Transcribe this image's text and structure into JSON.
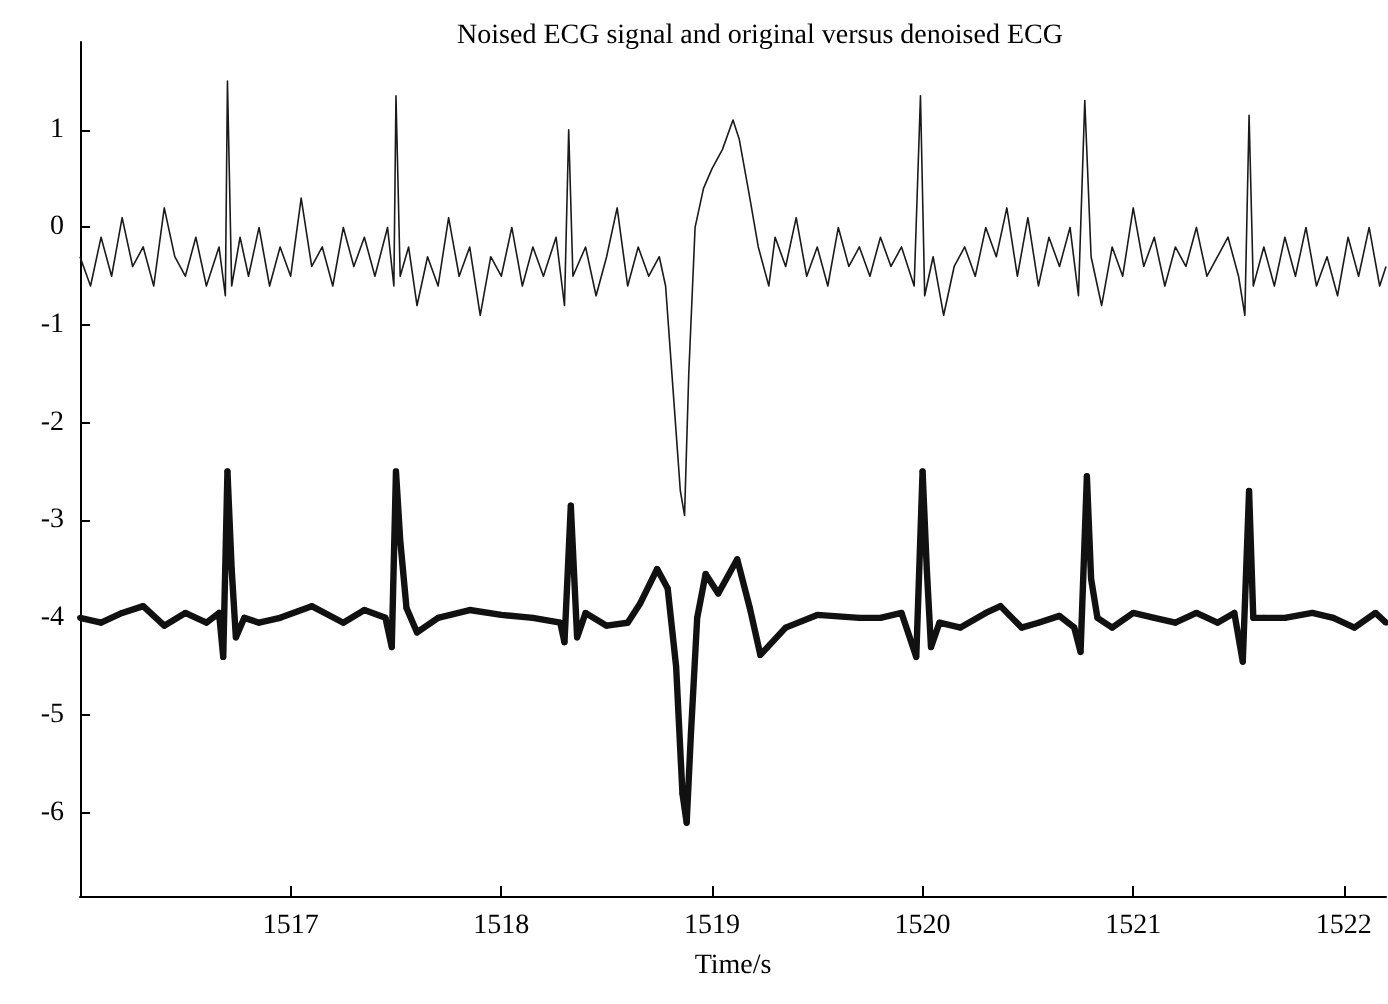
{
  "chart_data": {
    "type": "line",
    "title": "Noised ECG signal and original versus denoised ECG",
    "xlabel": "Time/s",
    "xlim": [
      1516.0,
      1522.2
    ],
    "xticks": [
      1517,
      1518,
      1519,
      1520,
      1521,
      1522
    ],
    "ylim": [
      -6.85,
      1.9
    ],
    "yticks": [
      -6,
      -5,
      -4,
      -3,
      -2,
      -1,
      0,
      1
    ],
    "grid": false,
    "series": [
      {
        "color": "#1a1a1a",
        "marker": "none",
        "x": [
          1516.0,
          1516.05,
          1516.1,
          1516.15,
          1516.2,
          1516.25,
          1516.3,
          1516.35,
          1516.4,
          1516.45,
          1516.5,
          1516.55,
          1516.6,
          1516.66,
          1516.69,
          1516.7,
          1516.72,
          1516.76,
          1516.8,
          1516.85,
          1516.9,
          1516.95,
          1517.0,
          1517.05,
          1517.1,
          1517.15,
          1517.2,
          1517.25,
          1517.3,
          1517.35,
          1517.4,
          1517.46,
          1517.49,
          1517.5,
          1517.52,
          1517.56,
          1517.6,
          1517.65,
          1517.7,
          1517.75,
          1517.8,
          1517.85,
          1517.9,
          1517.95,
          1518.0,
          1518.05,
          1518.1,
          1518.15,
          1518.2,
          1518.26,
          1518.3,
          1518.32,
          1518.34,
          1518.4,
          1518.45,
          1518.5,
          1518.55,
          1518.6,
          1518.65,
          1518.7,
          1518.75,
          1518.78,
          1518.82,
          1518.85,
          1518.87,
          1518.89,
          1518.92,
          1518.96,
          1519.0,
          1519.05,
          1519.1,
          1519.13,
          1519.18,
          1519.22,
          1519.27,
          1519.3,
          1519.35,
          1519.4,
          1519.45,
          1519.5,
          1519.55,
          1519.6,
          1519.65,
          1519.7,
          1519.75,
          1519.8,
          1519.85,
          1519.9,
          1519.96,
          1519.99,
          1520.01,
          1520.05,
          1520.1,
          1520.15,
          1520.2,
          1520.25,
          1520.3,
          1520.35,
          1520.4,
          1520.45,
          1520.5,
          1520.55,
          1520.6,
          1520.65,
          1520.7,
          1520.74,
          1520.77,
          1520.8,
          1520.85,
          1520.9,
          1520.95,
          1521.0,
          1521.05,
          1521.1,
          1521.15,
          1521.2,
          1521.25,
          1521.3,
          1521.35,
          1521.4,
          1521.45,
          1521.5,
          1521.53,
          1521.55,
          1521.57,
          1521.62,
          1521.67,
          1521.72,
          1521.77,
          1521.82,
          1521.87,
          1521.92,
          1521.97,
          1522.02,
          1522.07,
          1522.12,
          1522.17,
          1522.2
        ],
        "values": [
          -0.3,
          -0.6,
          -0.1,
          -0.5,
          0.1,
          -0.4,
          -0.2,
          -0.6,
          0.2,
          -0.3,
          -0.5,
          -0.1,
          -0.6,
          -0.2,
          -0.7,
          1.5,
          -0.6,
          -0.1,
          -0.5,
          0.0,
          -0.6,
          -0.2,
          -0.5,
          0.3,
          -0.4,
          -0.2,
          -0.6,
          0.0,
          -0.4,
          -0.1,
          -0.5,
          0.0,
          -0.6,
          1.35,
          -0.5,
          -0.2,
          -0.8,
          -0.3,
          -0.6,
          0.1,
          -0.5,
          -0.2,
          -0.9,
          -0.3,
          -0.5,
          0.0,
          -0.6,
          -0.2,
          -0.5,
          -0.1,
          -0.8,
          1.0,
          -0.5,
          -0.2,
          -0.7,
          -0.3,
          0.2,
          -0.6,
          -0.2,
          -0.5,
          -0.3,
          -0.6,
          -1.8,
          -2.7,
          -2.95,
          -1.5,
          0.0,
          0.4,
          0.6,
          0.8,
          1.1,
          0.9,
          0.3,
          -0.2,
          -0.6,
          -0.1,
          -0.4,
          0.1,
          -0.5,
          -0.2,
          -0.6,
          0.0,
          -0.4,
          -0.2,
          -0.5,
          -0.1,
          -0.4,
          -0.2,
          -0.6,
          1.35,
          -0.7,
          -0.3,
          -0.9,
          -0.4,
          -0.2,
          -0.5,
          0.0,
          -0.3,
          0.2,
          -0.5,
          0.1,
          -0.6,
          -0.1,
          -0.4,
          0.0,
          -0.7,
          1.3,
          -0.3,
          -0.8,
          -0.2,
          -0.5,
          0.2,
          -0.4,
          -0.1,
          -0.6,
          -0.2,
          -0.4,
          0.0,
          -0.5,
          -0.3,
          -0.1,
          -0.5,
          -0.9,
          1.15,
          -0.6,
          -0.2,
          -0.6,
          -0.1,
          -0.5,
          0.0,
          -0.6,
          -0.3,
          -0.7,
          -0.1,
          -0.5,
          0.0,
          -0.6,
          -0.4
        ]
      },
      {
        "color": "#111111",
        "marker": "circle",
        "x": [
          1516.0,
          1516.1,
          1516.2,
          1516.3,
          1516.4,
          1516.5,
          1516.6,
          1516.66,
          1516.68,
          1516.7,
          1516.72,
          1516.74,
          1516.78,
          1516.85,
          1516.95,
          1517.1,
          1517.25,
          1517.35,
          1517.45,
          1517.48,
          1517.5,
          1517.52,
          1517.55,
          1517.6,
          1517.7,
          1517.85,
          1518.0,
          1518.15,
          1518.28,
          1518.3,
          1518.33,
          1518.36,
          1518.4,
          1518.5,
          1518.6,
          1518.66,
          1518.74,
          1518.79,
          1518.83,
          1518.86,
          1518.88,
          1518.9,
          1518.93,
          1518.97,
          1519.03,
          1519.12,
          1519.18,
          1519.23,
          1519.35,
          1519.5,
          1519.7,
          1519.8,
          1519.9,
          1519.97,
          1520.0,
          1520.02,
          1520.04,
          1520.08,
          1520.18,
          1520.3,
          1520.37,
          1520.47,
          1520.55,
          1520.65,
          1520.72,
          1520.75,
          1520.78,
          1520.8,
          1520.83,
          1520.9,
          1521.0,
          1521.1,
          1521.2,
          1521.3,
          1521.4,
          1521.48,
          1521.52,
          1521.55,
          1521.57,
          1521.62,
          1521.72,
          1521.85,
          1521.95,
          1522.05,
          1522.15,
          1522.2
        ],
        "values": [
          -4.0,
          -4.05,
          -3.95,
          -3.88,
          -4.08,
          -3.95,
          -4.05,
          -3.95,
          -4.4,
          -2.5,
          -3.5,
          -4.2,
          -4.0,
          -4.05,
          -4.0,
          -3.88,
          -4.05,
          -3.92,
          -4.0,
          -4.3,
          -2.5,
          -3.2,
          -3.9,
          -4.15,
          -4.0,
          -3.92,
          -3.97,
          -4.0,
          -4.05,
          -4.25,
          -2.85,
          -4.2,
          -3.95,
          -4.08,
          -4.05,
          -3.85,
          -3.5,
          -3.7,
          -4.5,
          -5.8,
          -6.1,
          -5.2,
          -4.0,
          -3.55,
          -3.75,
          -3.4,
          -3.9,
          -4.38,
          -4.1,
          -3.97,
          -4.0,
          -4.0,
          -3.95,
          -4.4,
          -2.5,
          -3.5,
          -4.3,
          -4.05,
          -4.1,
          -3.95,
          -3.88,
          -4.1,
          -4.05,
          -3.98,
          -4.1,
          -4.35,
          -2.55,
          -3.6,
          -4.0,
          -4.1,
          -3.95,
          -4.0,
          -4.05,
          -3.95,
          -4.05,
          -3.95,
          -4.45,
          -2.7,
          -4.0,
          -4.0,
          -4.0,
          -3.95,
          -4.0,
          -4.1,
          -3.95,
          -4.05
        ]
      }
    ]
  }
}
